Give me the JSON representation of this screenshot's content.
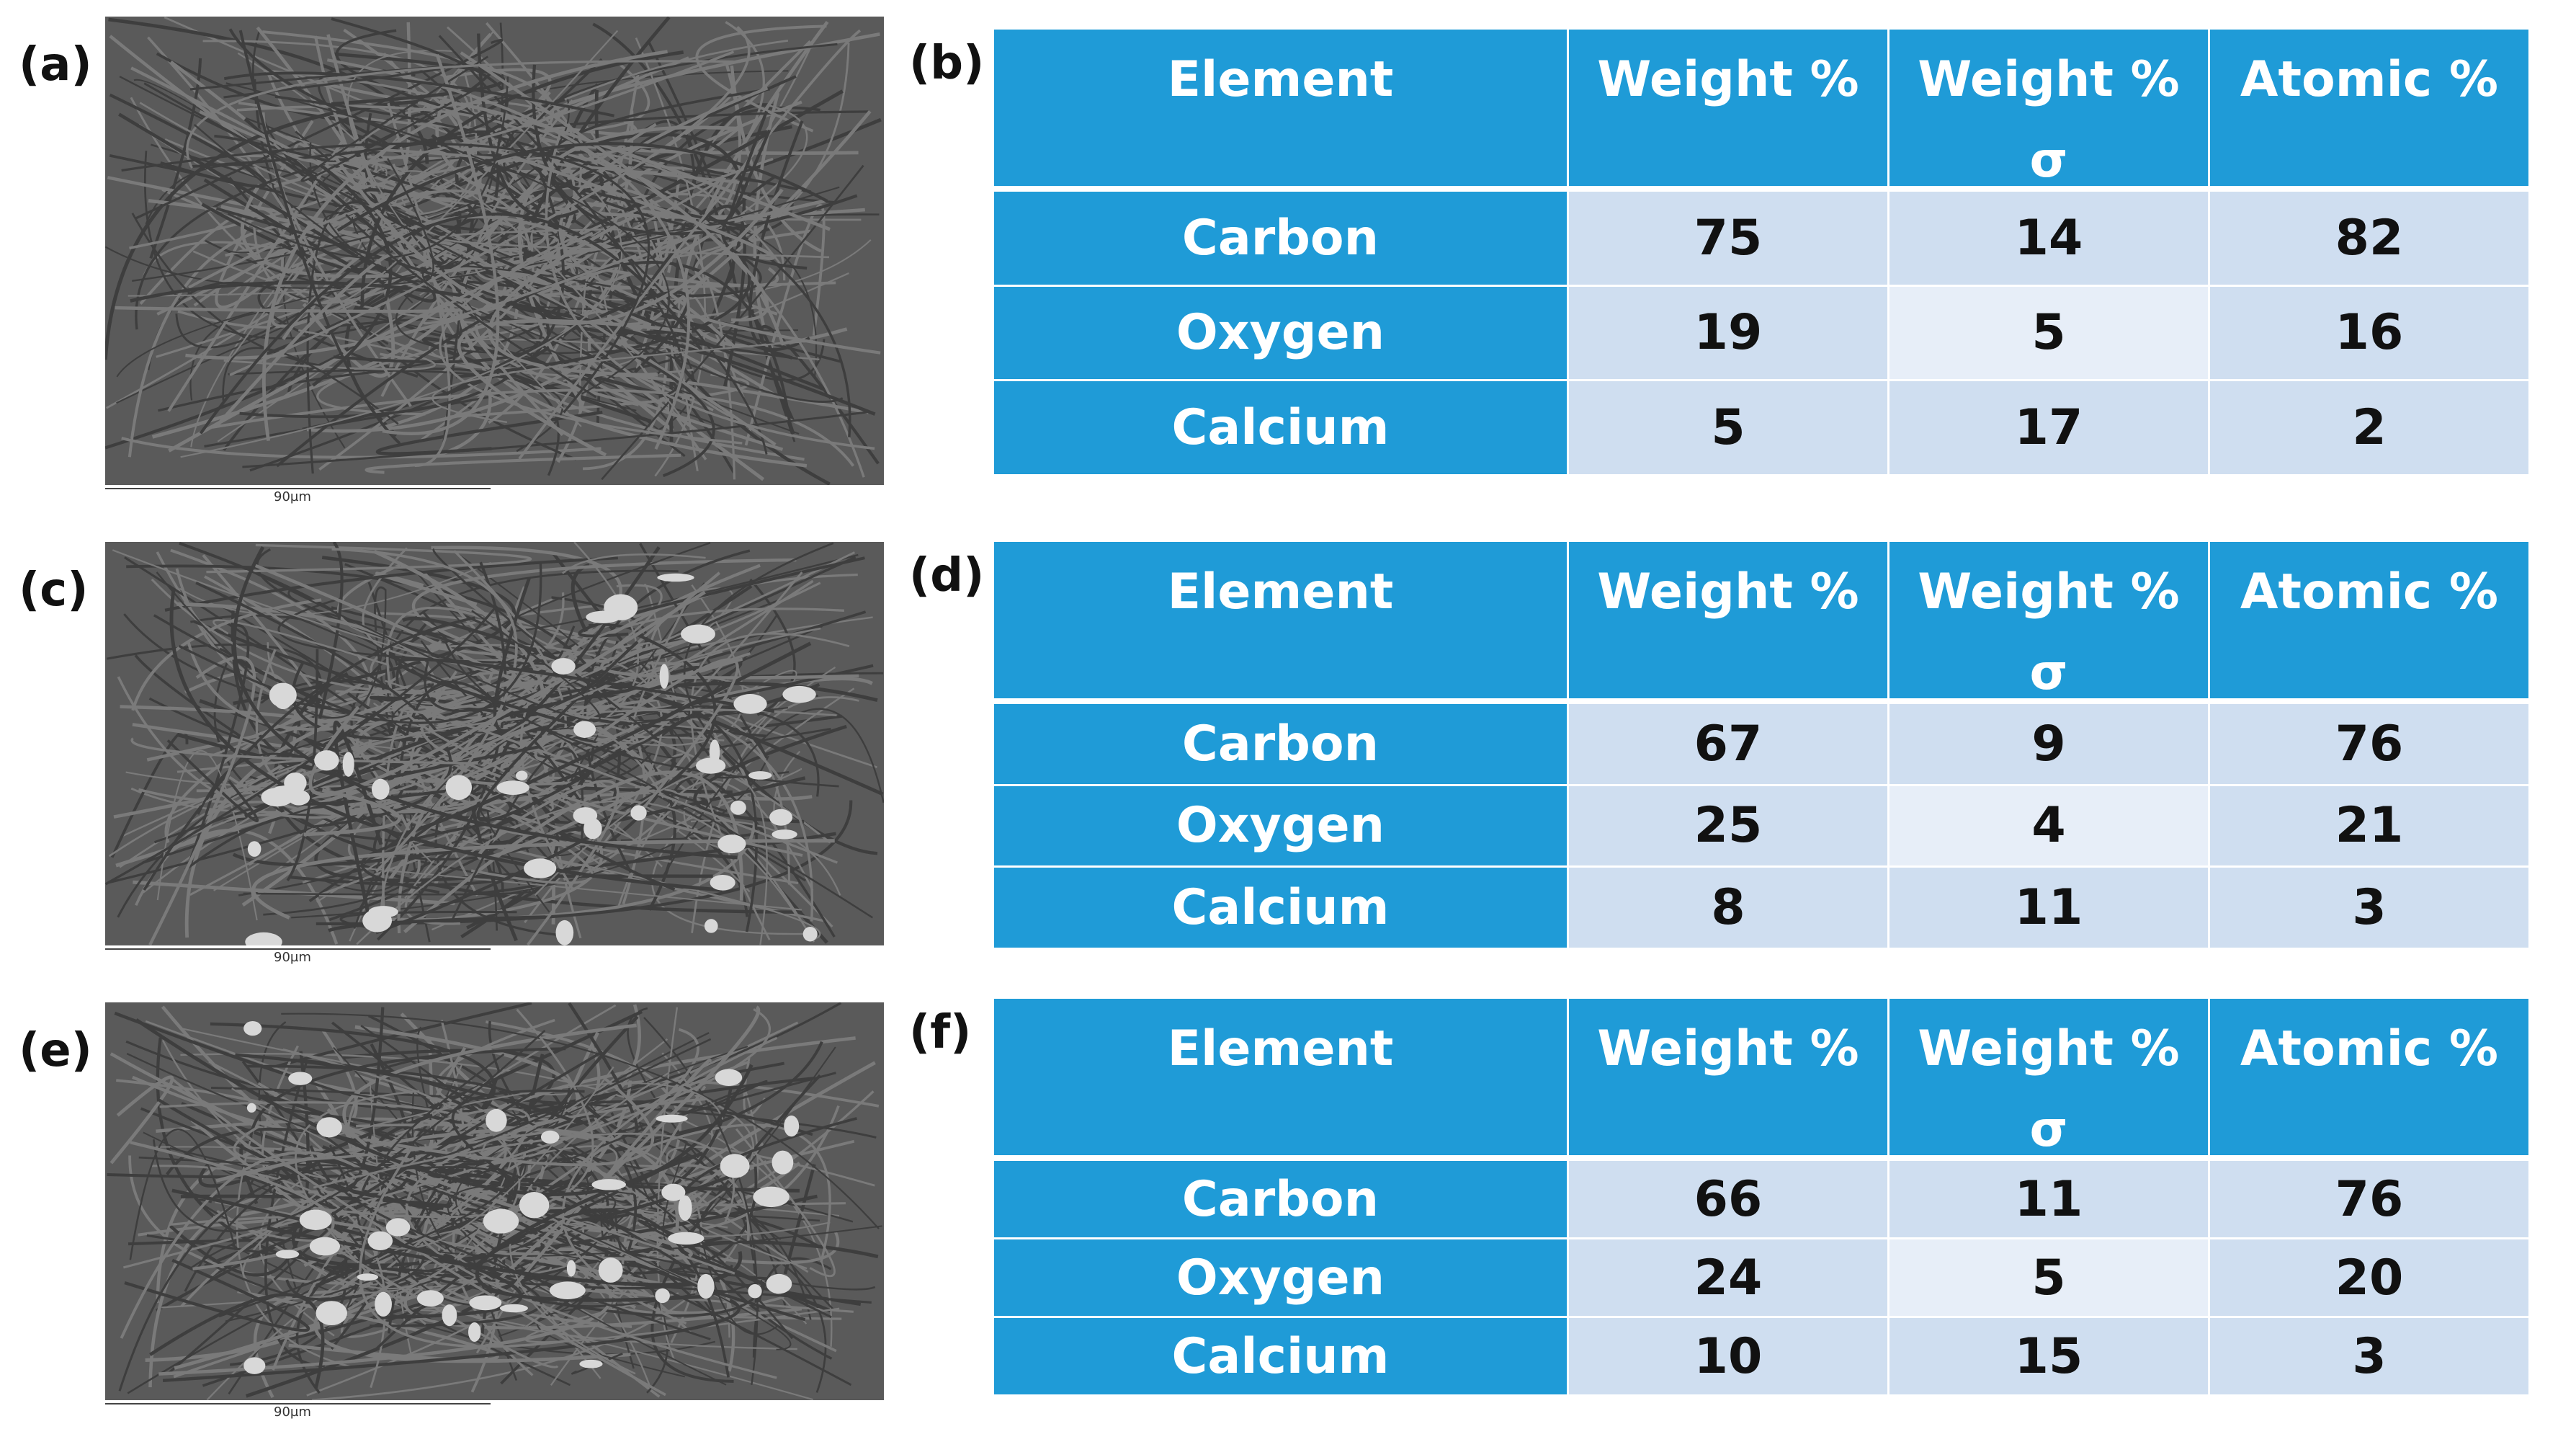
{
  "panels": [
    {
      "image_label": "(a)",
      "scale_bar": "90µm",
      "table_label": "(b)",
      "table": {
        "header": [
          "Element",
          "Weight %",
          "Weight %\nσ",
          "Atomic %"
        ],
        "rows": [
          [
            "Carbon",
            75,
            14,
            82
          ],
          [
            "Oxygen",
            19,
            5,
            16
          ],
          [
            "Calcium",
            5,
            17,
            2
          ]
        ]
      }
    },
    {
      "image_label": "(c)",
      "scale_bar": "90µm",
      "table_label": "(d)",
      "table": {
        "header": [
          "Element",
          "Weight %",
          "Weight %\nσ",
          "Atomic %"
        ],
        "rows": [
          [
            "Carbon",
            67,
            9,
            76
          ],
          [
            "Oxygen",
            25,
            4,
            21
          ],
          [
            "Calcium",
            8,
            11,
            3
          ]
        ]
      }
    },
    {
      "image_label": "(e)",
      "scale_bar": "90µm",
      "table_label": "(f)",
      "table": {
        "header": [
          "Element",
          "Weight %",
          "Weight %\nσ",
          "Atomic %"
        ],
        "rows": [
          [
            "Carbon",
            66,
            11,
            76
          ],
          [
            "Oxygen",
            24,
            5,
            20
          ],
          [
            "Calcium",
            10,
            15,
            3
          ]
        ]
      }
    }
  ]
}
